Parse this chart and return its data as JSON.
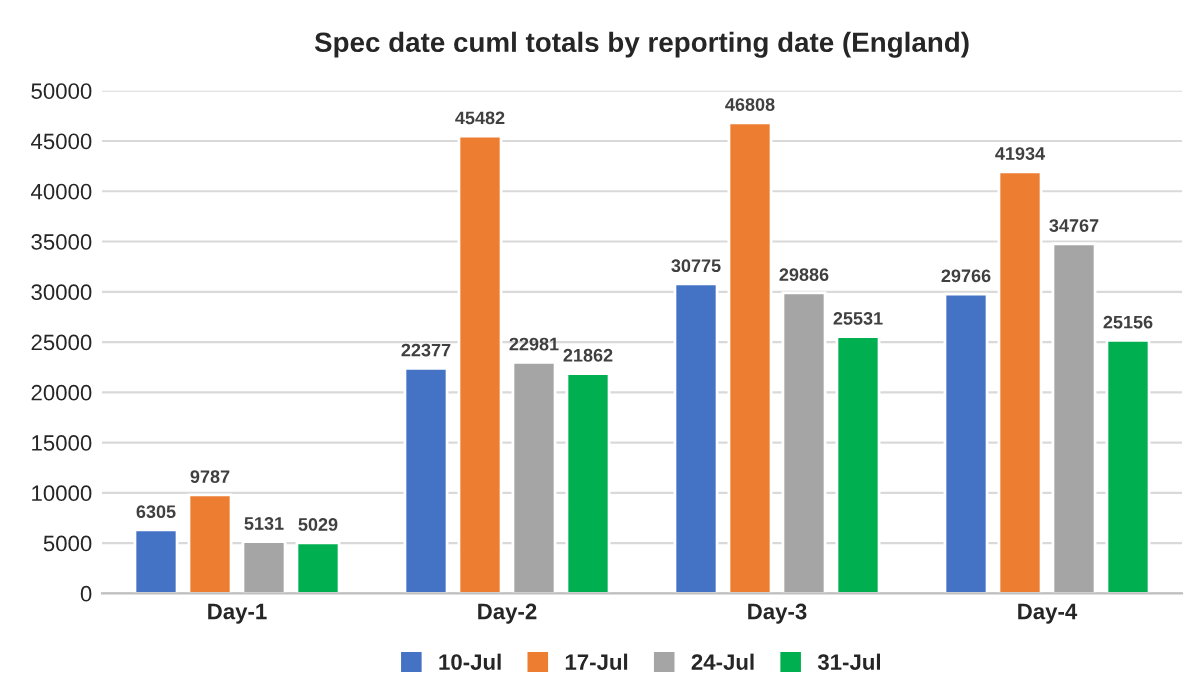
{
  "chart_data": {
    "type": "bar",
    "title": "Spec date cuml totals by reporting date (England)",
    "categories": [
      "Day-1",
      "Day-2",
      "Day-3",
      "Day-4"
    ],
    "series": [
      {
        "name": "10-Jul",
        "color": "#4472c4",
        "values": [
          6305,
          22377,
          30775,
          29766
        ]
      },
      {
        "name": "17-Jul",
        "color": "#ed7d31",
        "values": [
          9787,
          45482,
          46808,
          41934
        ]
      },
      {
        "name": "24-Jul",
        "color": "#a5a5a5",
        "values": [
          5131,
          22981,
          29886,
          34767
        ]
      },
      {
        "name": "31-Jul",
        "color": "#00b050",
        "values": [
          5029,
          21862,
          25531,
          25156
        ]
      }
    ],
    "ylim": [
      0,
      50000
    ],
    "yticks": [
      0,
      5000,
      10000,
      15000,
      20000,
      25000,
      30000,
      35000,
      40000,
      45000,
      50000
    ],
    "grid": "y",
    "legend": "bottom",
    "data_labels": true
  }
}
